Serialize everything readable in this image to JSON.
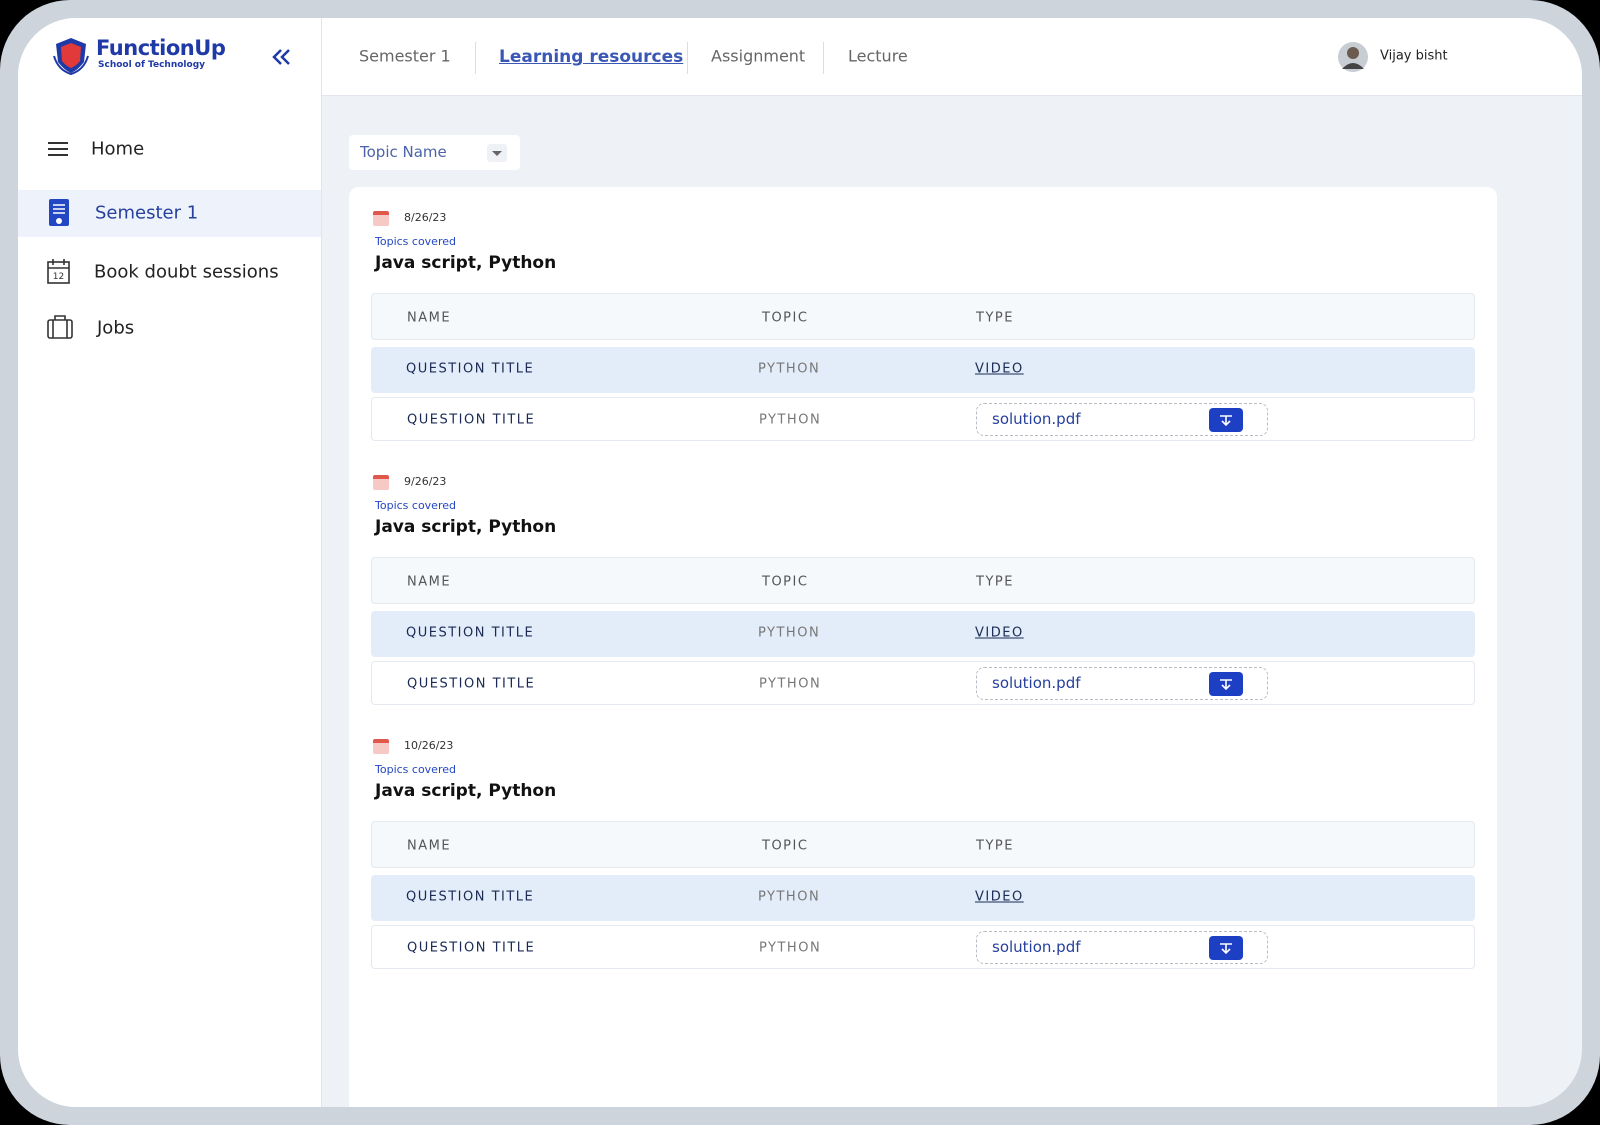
{
  "logo": {
    "name": "FunctionUp",
    "tagline": "School of Technology"
  },
  "sidebar": {
    "items": [
      "Home",
      "Semester 1",
      "Book doubt sessions",
      "Jobs"
    ]
  },
  "tabs": [
    "Semester 1",
    "Learning resources",
    "Assignment",
    "Lecture"
  ],
  "user": {
    "name": "Vijay bisht"
  },
  "filter": {
    "label": "Topic Name"
  },
  "sections": [
    {
      "date": "8/26/23",
      "topics_label": "Topics covered",
      "topics": "Java script,  Python",
      "columns": [
        "NAME",
        "TOPIC",
        "TYPE"
      ],
      "rows": [
        [
          "QUESTION TITLE",
          "PYTHON",
          "VIDEO"
        ],
        [
          "QUESTION TITLE",
          "PYTHON",
          "solution.pdf"
        ]
      ]
    },
    {
      "date": "9/26/23",
      "topics_label": "Topics covered",
      "topics": "Java script,  Python",
      "columns": [
        "NAME",
        "TOPIC",
        "TYPE"
      ],
      "rows": [
        [
          "QUESTION TITLE",
          "PYTHON",
          "VIDEO"
        ],
        [
          "QUESTION TITLE",
          "PYTHON",
          "solution.pdf"
        ]
      ]
    },
    {
      "date": "10/26/23",
      "topics_label": "Topics covered",
      "topics": "Java script,  Python",
      "columns": [
        "NAME",
        "TOPIC",
        "TYPE"
      ],
      "rows": [
        [
          "QUESTION TITLE",
          "PYTHON",
          "VIDEO"
        ],
        [
          "QUESTION TITLE",
          "PYTHON",
          "solution.pdf"
        ]
      ]
    }
  ]
}
